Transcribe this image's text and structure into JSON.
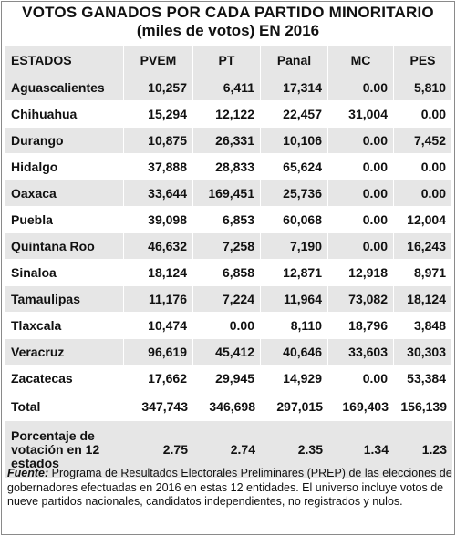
{
  "title_line1": "VOTOS GANADOS POR CADA PARTIDO MINORITARIO",
  "title_line2": "(miles de votos) EN 2016",
  "headers": [
    "ESTADOS",
    "PVEM",
    "PT",
    "Panal",
    "MC",
    "PES"
  ],
  "rows": [
    {
      "state": "Aguascalientes",
      "pvem": "10,257",
      "pt": "6,411",
      "panal": "17,314",
      "mc": "0.00",
      "pes": "5,810"
    },
    {
      "state": "Chihuahua",
      "pvem": "15,294",
      "pt": "12,122",
      "panal": "22,457",
      "mc": "31,004",
      "pes": "0.00"
    },
    {
      "state": "Durango",
      "pvem": "10,875",
      "pt": "26,331",
      "panal": "10,106",
      "mc": "0.00",
      "pes": "7,452"
    },
    {
      "state": "Hidalgo",
      "pvem": "37,888",
      "pt": "28,833",
      "panal": "65,624",
      "mc": "0.00",
      "pes": "0.00"
    },
    {
      "state": "Oaxaca",
      "pvem": "33,644",
      "pt": "169,451",
      "panal": "25,736",
      "mc": "0.00",
      "pes": "0.00"
    },
    {
      "state": "Puebla",
      "pvem": "39,098",
      "pt": "6,853",
      "panal": "60,068",
      "mc": "0.00",
      "pes": "12,004"
    },
    {
      "state": "Quintana Roo",
      "pvem": "46,632",
      "pt": "7,258",
      "panal": "7,190",
      "mc": "0.00",
      "pes": "16,243"
    },
    {
      "state": "Sinaloa",
      "pvem": "18,124",
      "pt": "6,858",
      "panal": "12,871",
      "mc": "12,918",
      "pes": "8,971"
    },
    {
      "state": "Tamaulipas",
      "pvem": "11,176",
      "pt": "7,224",
      "panal": "11,964",
      "mc": "73,082",
      "pes": "18,124"
    },
    {
      "state": "Tlaxcala",
      "pvem": "10,474",
      "pt": "0.00",
      "panal": "8,110",
      "mc": "18,796",
      "pes": "3,848"
    },
    {
      "state": "Veracruz",
      "pvem": "96,619",
      "pt": "45,412",
      "panal": "40,646",
      "mc": "33,603",
      "pes": "30,303"
    },
    {
      "state": "Zacatecas",
      "pvem": "17,662",
      "pt": "29,945",
      "panal": "14,929",
      "mc": "0.00",
      "pes": "53,384"
    }
  ],
  "total": {
    "label": "Total",
    "pvem": "347,743",
    "pt": "346,698",
    "panal": "297,015",
    "mc": "169,403",
    "pes": "156,139"
  },
  "percentage": {
    "label": "Porcentaje de votación en 12 estados",
    "pvem": "2.75",
    "pt": "2.74",
    "panal": "2.35",
    "mc": "1.34",
    "pes": "1.23"
  },
  "footnote": {
    "source_label": "Fuente:",
    "text": " Programa de Resultados Electorales Preliminares (PREP) de las elecciones de gobernadores efectuadas en 2016 en estas 12 entidades. El universo incluye votos de nueve partidos nacionales, candidatos independientes, no registrados y nulos."
  }
}
